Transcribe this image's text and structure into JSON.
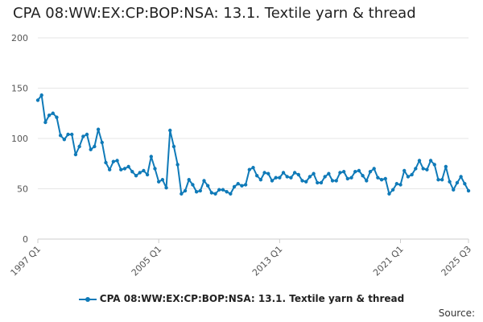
{
  "chart_data": {
    "type": "line",
    "title": "CPA 08:WW:EX:CP:BOP:NSA: 13.1. Textile yarn & thread",
    "xlabel": "",
    "ylabel": "",
    "ylim": [
      0,
      200
    ],
    "y_ticks": [
      "0",
      "50",
      "100",
      "150",
      "200"
    ],
    "x_start": "1997 Q1",
    "x_end": "2025 Q3",
    "x_ticks": [
      "1997 Q1",
      "2005 Q1",
      "2013 Q1",
      "2021 Q1",
      "2025 Q3"
    ],
    "grid": true,
    "legend_position": "bottom",
    "colors": {
      "series": "#0f7ab8",
      "grid": "#e6e6e6",
      "axis": "#cccccc"
    },
    "series": [
      {
        "name": "CPA 08:WW:EX:CP:BOP:NSA: 13.1. Textile yarn & thread",
        "values": [
          138,
          143,
          116,
          123,
          125,
          121,
          103,
          99,
          104,
          104,
          84,
          92,
          102,
          104,
          89,
          92,
          109,
          96,
          76,
          69,
          77,
          78,
          69,
          70,
          72,
          67,
          63,
          66,
          68,
          64,
          82,
          70,
          57,
          59,
          51,
          108,
          92,
          74,
          45,
          48,
          59,
          54,
          47,
          48,
          58,
          53,
          46,
          45,
          49,
          49,
          47,
          45,
          52,
          55,
          53,
          54,
          69,
          71,
          63,
          59,
          66,
          65,
          58,
          61,
          61,
          66,
          62,
          61,
          66,
          64,
          58,
          57,
          62,
          65,
          56,
          56,
          62,
          65,
          58,
          58,
          66,
          67,
          60,
          61,
          67,
          68,
          63,
          58,
          67,
          70,
          61,
          59,
          60,
          45,
          49,
          55,
          54,
          68,
          62,
          64,
          70,
          78,
          70,
          69,
          78,
          74,
          59,
          59,
          72,
          57,
          49,
          56,
          62,
          55,
          48
        ]
      }
    ]
  },
  "legend": {
    "label": "CPA 08:WW:EX:CP:BOP:NSA: 13.1. Textile yarn & thread"
  },
  "footer": {
    "source_label": "Source:"
  }
}
